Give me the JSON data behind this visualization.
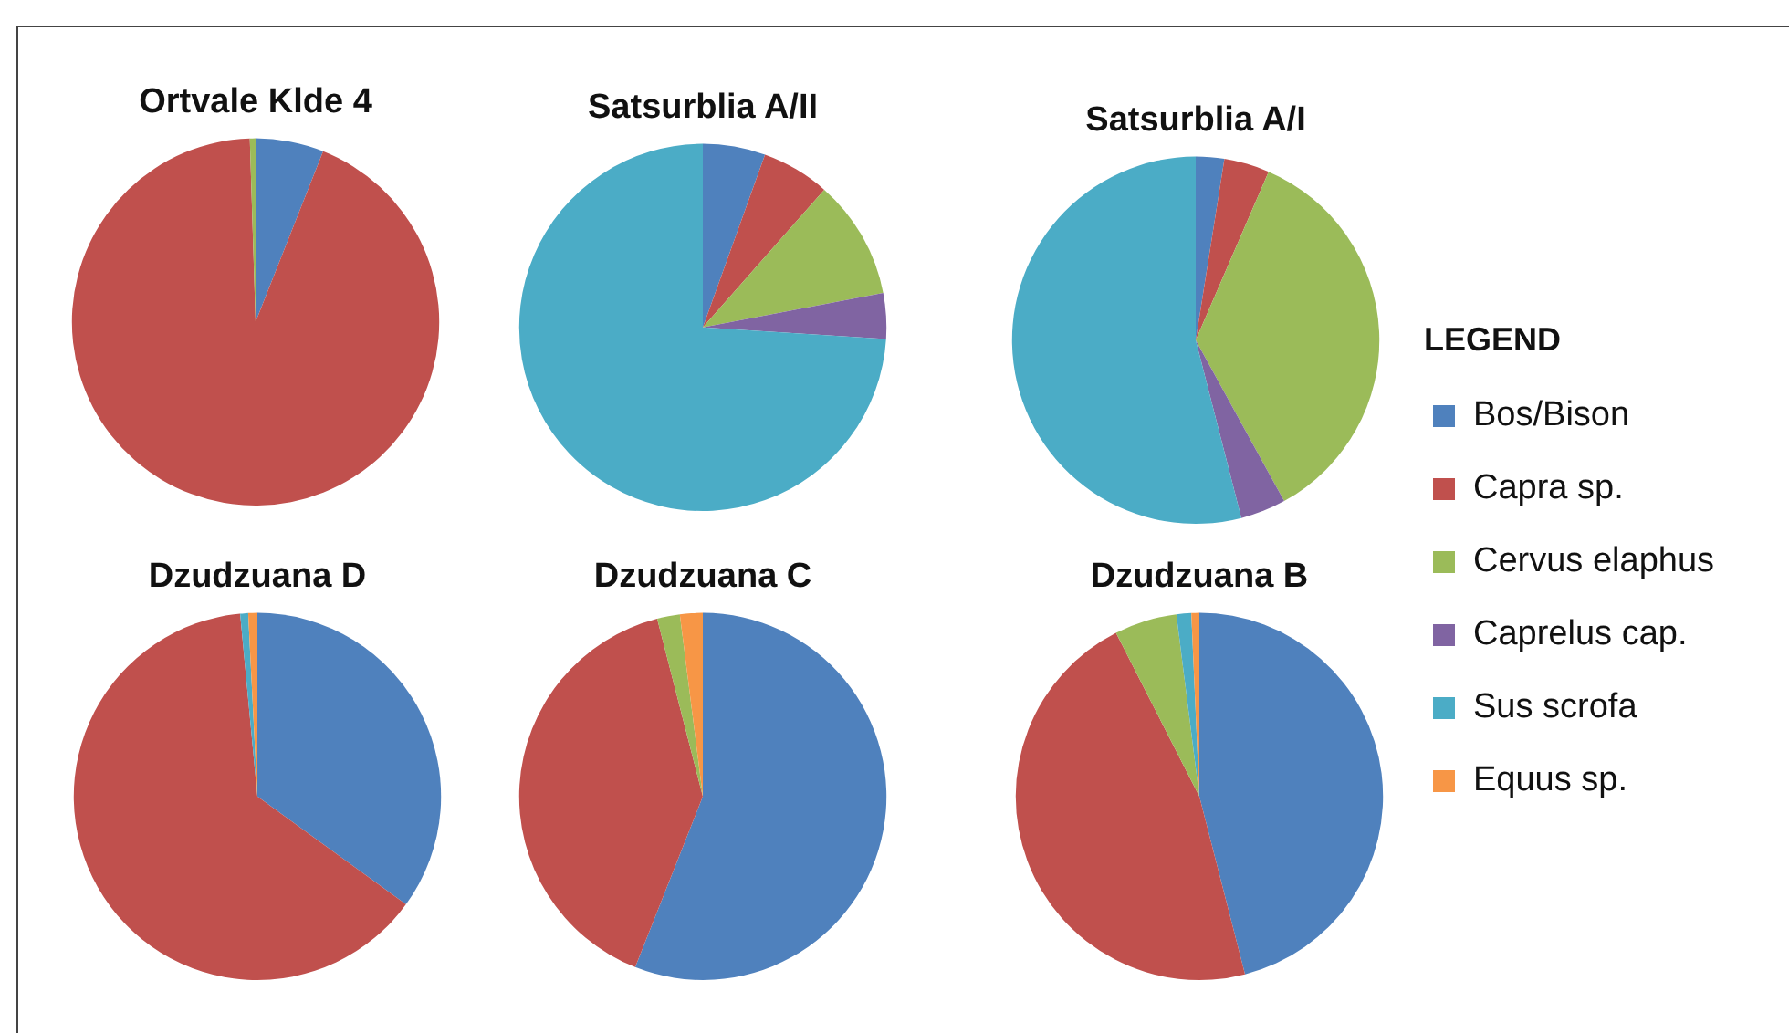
{
  "chart_data": [
    {
      "type": "pie",
      "title": "Ortvale Klde 4",
      "categories": [
        null,
        null,
        null,
        null,
        null,
        null
      ],
      "values": [
        6,
        93.5,
        0.5,
        0,
        0,
        0
      ],
      "colors": [
        "#4f81bd",
        "#c0504d",
        "#9bbb59",
        "#8064a2",
        "#4bacc6",
        "#f79646"
      ]
    },
    {
      "type": "pie",
      "title": "Satsurblia A/II",
      "categories": [
        null,
        null,
        null,
        null,
        null,
        null
      ],
      "values": [
        5.5,
        6,
        10.5,
        4,
        74,
        0
      ],
      "colors": [
        "#4f81bd",
        "#c0504d",
        "#9bbb59",
        "#8064a2",
        "#4bacc6",
        "#f79646"
      ]
    },
    {
      "type": "pie",
      "title": "Satsurblia A/I",
      "categories": [
        "Bos/Bison",
        "Capra sp.",
        "Cervus elaphus",
        "Caprelus cap.",
        "Sus scrofa",
        "Equus sp."
      ],
      "values": [
        2.5,
        4,
        35.5,
        4,
        54,
        0
      ],
      "colors": [
        "#4f81bd",
        "#c0504d",
        "#9bbb59",
        "#8064a2",
        "#4bacc6",
        "#f79646"
      ],
      "legend": "right",
      "legend_title": "LEGEND"
    },
    {
      "type": "pie",
      "title": "Dzudzuana D",
      "categories": [
        null,
        null,
        null,
        null,
        null,
        null
      ],
      "values": [
        35,
        63.5,
        0,
        0,
        0.7,
        0.8
      ],
      "colors": [
        "#4f81bd",
        "#c0504d",
        "#9bbb59",
        "#8064a2",
        "#4bacc6",
        "#f79646"
      ]
    },
    {
      "type": "pie",
      "title": "Dzudzuana C",
      "categories": [
        null,
        null,
        null,
        null,
        null,
        null
      ],
      "values": [
        56,
        40,
        2,
        0,
        0,
        2
      ],
      "colors": [
        "#4f81bd",
        "#c0504d",
        "#9bbb59",
        "#8064a2",
        "#4bacc6",
        "#f79646"
      ]
    },
    {
      "type": "pie",
      "title": "Dzudzuana B",
      "categories": [
        null,
        null,
        null,
        null,
        null,
        null
      ],
      "values": [
        46,
        46.5,
        5.5,
        0,
        1.3,
        0.7
      ],
      "colors": [
        "#4f81bd",
        "#c0504d",
        "#9bbb59",
        "#8064a2",
        "#4bacc6",
        "#f79646"
      ]
    }
  ]
}
